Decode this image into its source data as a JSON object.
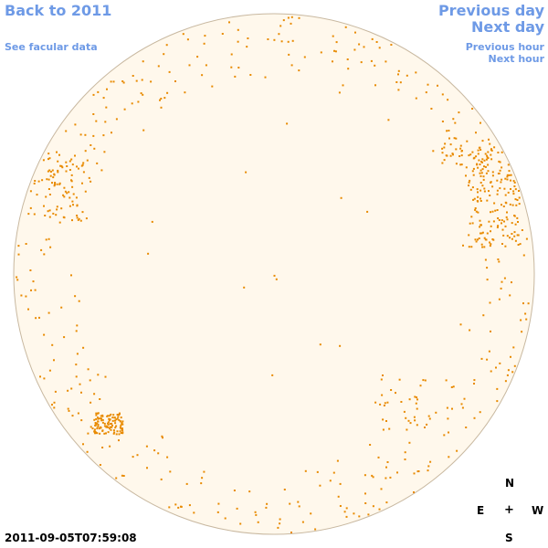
{
  "nav": {
    "back_label": "Back to 2011",
    "facular_label": "See facular data",
    "prev_day_label": "Previous day",
    "next_day_label": "Next day",
    "prev_hour_label": "Previous hour",
    "next_hour_label": "Next hour"
  },
  "compass": {
    "north": "N",
    "south": "S",
    "east": "E",
    "west": "W",
    "center": "+"
  },
  "timestamp": "2011-09-05T07:59:08",
  "colors": {
    "link": "#6e9ae6",
    "disk_fill": "#fff8ec",
    "disk_stroke": "#c8b8a0",
    "facula": "#e88a00"
  }
}
